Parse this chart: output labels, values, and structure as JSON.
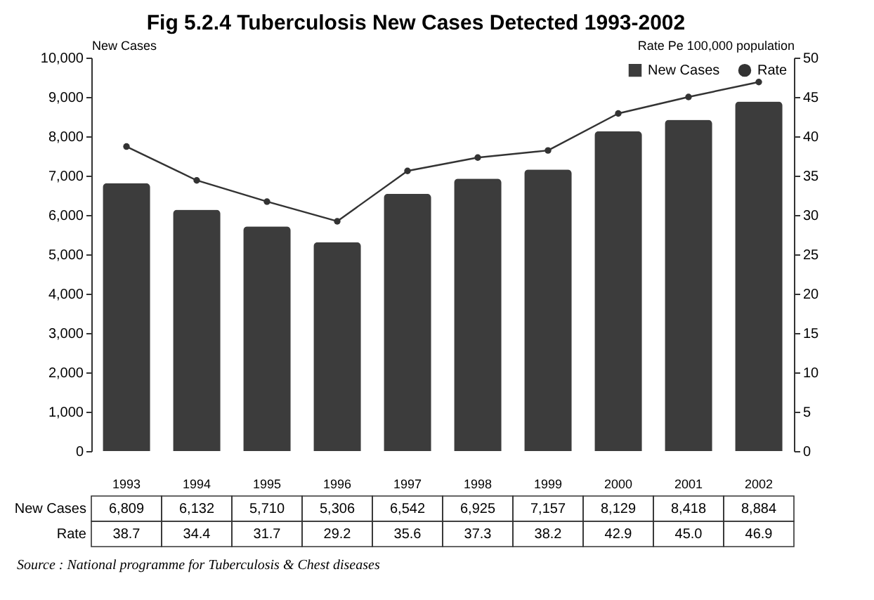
{
  "chart_data": {
    "type": "bar",
    "title": "Fig 5.2.4 Tuberculosis New Cases Detected 1993-2002",
    "ylabel": "New Cases",
    "y2label": "Rate Pe 100,000 population",
    "categories": [
      "1993",
      "1994",
      "1995",
      "1996",
      "1997",
      "1998",
      "1999",
      "2000",
      "2001",
      "2002"
    ],
    "series": [
      {
        "name": "New Cases",
        "color": "#3c3c3c",
        "values": [
          6809,
          6132,
          5710,
          5306,
          6542,
          6925,
          7157,
          8129,
          8418,
          8884
        ],
        "value_labels": [
          "6,809",
          "6,132",
          "5,710",
          "5,306",
          "6,542",
          "6,925",
          "7,157",
          "8,129",
          "8,418",
          "8,884"
        ]
      },
      {
        "name": "Rate",
        "type": "line",
        "axis": "y2",
        "color": "#333333",
        "values": [
          38.7,
          34.4,
          31.7,
          29.2,
          35.6,
          37.3,
          38.2,
          42.9,
          45.0,
          46.9
        ],
        "value_labels": [
          "38.7",
          "34.4",
          "31.7",
          "29.2",
          "35.6",
          "37.3",
          "38.2",
          "42.9",
          "45.0",
          "46.9"
        ]
      }
    ],
    "ylim": [
      0,
      10000
    ],
    "yticks": [
      0,
      {
        "value": 1000,
        "label": "1,000"
      },
      {
        "value": 2000,
        "label": "2,000"
      },
      {
        "value": 3000,
        "label": "3,000"
      },
      {
        "value": 4000,
        "label": "4,000"
      },
      {
        "value": 5000,
        "label": "5,000"
      },
      {
        "value": 6000,
        "label": "6,000"
      },
      {
        "value": 7000,
        "label": "7,000"
      },
      {
        "value": 8000,
        "label": "8,000"
      },
      {
        "value": 9000,
        "label": "9,000"
      },
      {
        "value": 10000,
        "label": "10,000"
      }
    ],
    "y2lim": [
      0,
      50
    ],
    "y2ticks": [
      0,
      5,
      10,
      15,
      20,
      25,
      30,
      35,
      40,
      45,
      50
    ],
    "legend": "top right",
    "marker": "circle",
    "annotations": [
      "Source : National programme for Tuberculosis & Chest diseases"
    ]
  }
}
